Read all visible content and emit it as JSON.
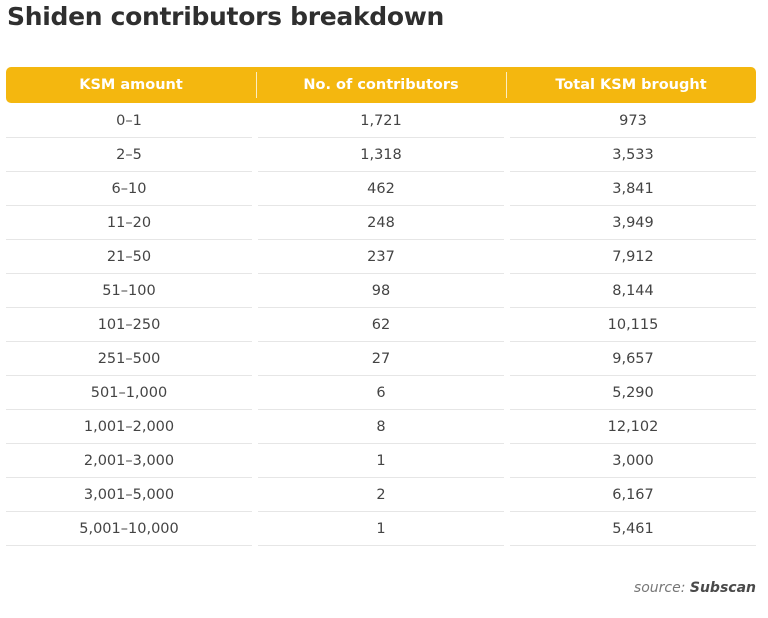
{
  "title": "Shiden contributors breakdown",
  "source_prefix": "source:",
  "source_name": "Subscan",
  "colors": {
    "header": "#f4b70f",
    "header_text": "#ffffff"
  },
  "chart_data": {
    "type": "table",
    "columns": [
      "KSM amount",
      "No. of contributors",
      "Total KSM brought"
    ],
    "rows": [
      [
        "0–1",
        "1,721",
        "973"
      ],
      [
        "2–5",
        "1,318",
        "3,533"
      ],
      [
        "6–10",
        "462",
        "3,841"
      ],
      [
        "11–20",
        "248",
        "3,949"
      ],
      [
        "21–50",
        "237",
        "7,912"
      ],
      [
        "51–100",
        "98",
        "8,144"
      ],
      [
        "101–250",
        "62",
        "10,115"
      ],
      [
        "251–500",
        "27",
        "9,657"
      ],
      [
        "501–1,000",
        "6",
        "5,290"
      ],
      [
        "1,001–2,000",
        "8",
        "12,102"
      ],
      [
        "2,001–3,000",
        "1",
        "3,000"
      ],
      [
        "3,001–5,000",
        "2",
        "6,167"
      ],
      [
        "5,001–10,000",
        "1",
        "5,461"
      ]
    ]
  }
}
